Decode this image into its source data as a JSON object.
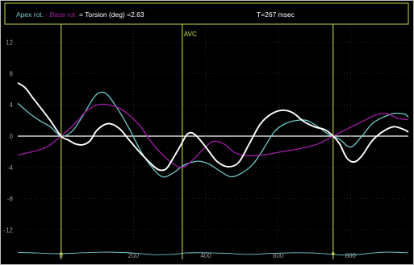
{
  "header": {
    "apex_label": "Apex rot.",
    "sep1": " - ",
    "base_label": "Base rot.",
    "sep2": " = ",
    "torsion_label": "Torsion (deg)",
    "torsion_value": " =2.63",
    "time_label": "T=267 msec"
  },
  "colors": {
    "background": "#000000",
    "frame": "#c8d84a",
    "apex": "#6fc9c9",
    "base": "#a21ca8",
    "torsion": "#ffffff",
    "markers": "#c8d84a",
    "avc": "#c8e04a",
    "grid": "#3a3a3a",
    "zero_line": "#ffffff",
    "ticks": "#9a9a9a"
  },
  "chart_data": {
    "type": "line",
    "title": "",
    "xlabel": "",
    "ylabel": "",
    "xlim": [
      -120,
      960
    ],
    "ylim": [
      -14,
      14
    ],
    "grid": true,
    "y_ticks": [
      12,
      8,
      4,
      0,
      -4,
      -8,
      -12
    ],
    "x_ticks": [
      0,
      200,
      400,
      600,
      800
    ],
    "markers": [
      {
        "x": 0,
        "label": ""
      },
      {
        "x": 335,
        "label": "AVC"
      },
      {
        "x": 752,
        "label": ""
      }
    ],
    "series": [
      {
        "name": "Apex rot.",
        "color": "#6fc9c9",
        "x": [
          -120,
          -90,
          -60,
          -30,
          0,
          30,
          60,
          90,
          110,
          130,
          160,
          190,
          220,
          250,
          280,
          310,
          330,
          350,
          380,
          410,
          440,
          470,
          500,
          530,
          560,
          590,
          620,
          650,
          680,
          710,
          740,
          770,
          800,
          830,
          860,
          890,
          920,
          950,
          960
        ],
        "y": [
          4.2,
          3.0,
          2.0,
          1.2,
          0.0,
          0.6,
          2.6,
          4.9,
          5.6,
          5.2,
          3.2,
          0.8,
          -1.9,
          -3.9,
          -5.2,
          -4.7,
          -4.0,
          -3.5,
          -3.2,
          -3.6,
          -4.5,
          -5.2,
          -4.7,
          -3.6,
          -1.6,
          0.6,
          1.6,
          2.0,
          2.0,
          1.2,
          0.2,
          -0.4,
          -1.4,
          -0.1,
          1.6,
          2.4,
          2.9,
          2.8,
          2.4
        ]
      },
      {
        "name": "Base rot.",
        "color": "#a21ca8",
        "x": [
          -120,
          -80,
          -40,
          0,
          40,
          70,
          100,
          130,
          160,
          190,
          220,
          250,
          290,
          330,
          360,
          390,
          420,
          450,
          480,
          510,
          560,
          610,
          660,
          710,
          752,
          790,
          830,
          870,
          900,
          930,
          960
        ],
        "y": [
          -2.4,
          -2.0,
          -1.4,
          0.0,
          1.7,
          3.2,
          4.0,
          4.0,
          3.6,
          2.6,
          1.2,
          -0.8,
          -2.8,
          -4.0,
          -3.2,
          -1.8,
          -0.7,
          -1.0,
          -2.1,
          -2.5,
          -2.4,
          -2.0,
          -1.6,
          -1.0,
          0.0,
          0.9,
          1.8,
          2.7,
          2.9,
          2.3,
          2.1
        ]
      },
      {
        "name": "Torsion (deg)",
        "color": "#ffffff",
        "x": [
          -120,
          -100,
          -80,
          -60,
          -30,
          0,
          20,
          40,
          60,
          80,
          100,
          130,
          160,
          190,
          220,
          250,
          270,
          290,
          310,
          330,
          350,
          370,
          400,
          430,
          460,
          490,
          520,
          550,
          580,
          610,
          640,
          670,
          700,
          730,
          752,
          770,
          790,
          810,
          830,
          860,
          890,
          920,
          950,
          960
        ],
        "y": [
          6.8,
          6.2,
          5.0,
          3.8,
          2.0,
          0.0,
          -0.5,
          -1.0,
          -1.1,
          -0.6,
          0.8,
          1.6,
          1.0,
          -0.6,
          -2.2,
          -3.6,
          -4.3,
          -4.2,
          -2.8,
          -1.2,
          0.3,
          0.2,
          -1.4,
          -3.2,
          -3.9,
          -3.4,
          -1.0,
          1.5,
          2.8,
          3.3,
          3.0,
          1.9,
          1.2,
          0.8,
          0.0,
          -1.0,
          -2.8,
          -3.3,
          -2.6,
          -0.6,
          0.6,
          1.2,
          0.8,
          0.5
        ]
      }
    ],
    "minimap": {
      "x": [
        -120,
        -60,
        0,
        60,
        130,
        200,
        260,
        320,
        340,
        400,
        460,
        520,
        580,
        640,
        700,
        752,
        800,
        860,
        900,
        960
      ],
      "y": [
        0.4,
        0.2,
        0.0,
        0.3,
        0.5,
        0.2,
        -0.3,
        -0.1,
        0.2,
        0.3,
        0.1,
        -0.2,
        0.1,
        0.3,
        0.2,
        -0.2,
        -0.4,
        0.2,
        0.5,
        0.3
      ]
    }
  }
}
